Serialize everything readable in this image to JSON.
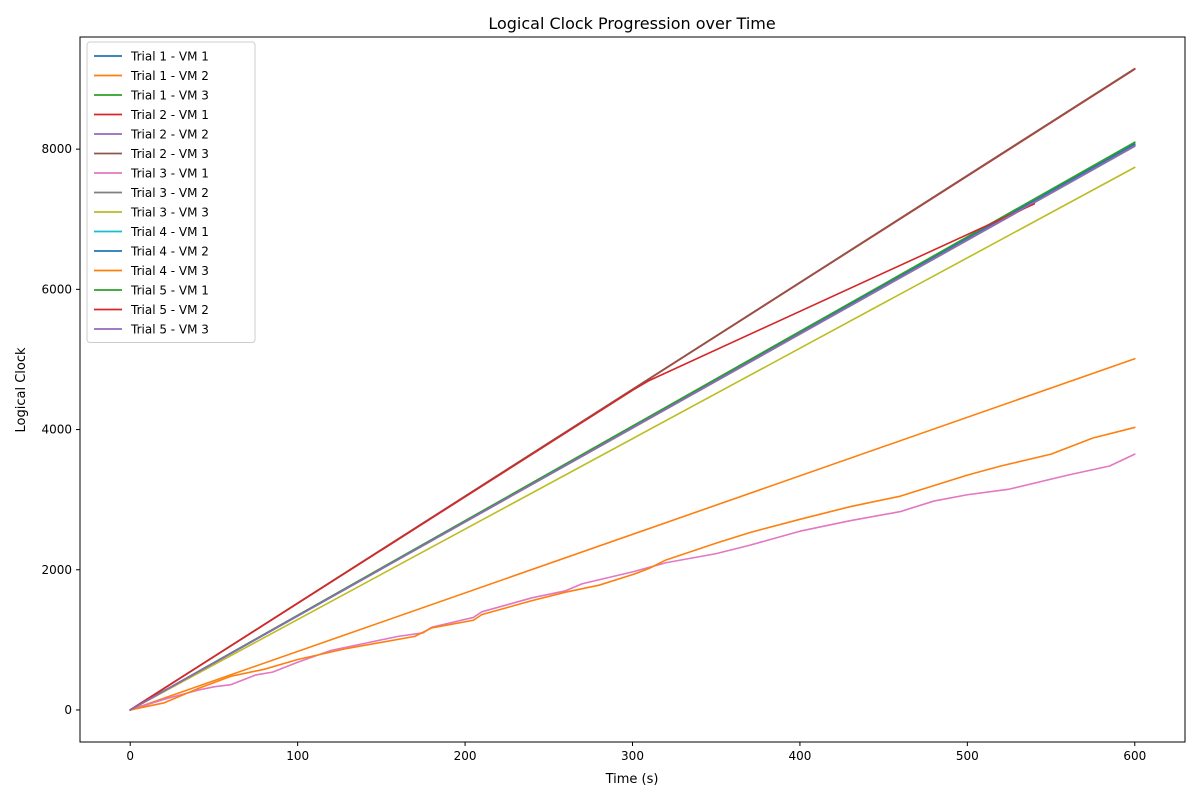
{
  "chart_data": {
    "type": "line",
    "title": "Logical Clock Progression over Time",
    "xlabel": "Time (s)",
    "ylabel": "Logical Clock",
    "xlim": [
      -30,
      630
    ],
    "ylim": [
      -457,
      9600
    ],
    "xticks": [
      0,
      100,
      200,
      300,
      400,
      500,
      600
    ],
    "yticks": [
      0,
      2000,
      4000,
      6000,
      8000
    ],
    "grid": false,
    "legend_position": "top-left",
    "series": [
      {
        "name": "Trial 1 - VM 1",
        "color": "#1f77b4",
        "x": [
          0,
          600
        ],
        "y": [
          0,
          8050
        ]
      },
      {
        "name": "Trial 1 - VM 2",
        "color": "#ff7f0e",
        "x": [
          0,
          600
        ],
        "y": [
          0,
          5010
        ]
      },
      {
        "name": "Trial 1 - VM 3",
        "color": "#2ca02c",
        "x": [
          0,
          600
        ],
        "y": [
          0,
          8090
        ]
      },
      {
        "name": "Trial 2 - VM 1",
        "color": "#d62728",
        "x": [
          0,
          600
        ],
        "y": [
          0,
          9140
        ]
      },
      {
        "name": "Trial 2 - VM 2",
        "color": "#9467bd",
        "x": [
          0,
          600
        ],
        "y": [
          0,
          8060
        ]
      },
      {
        "name": "Trial 2 - VM 3",
        "color": "#8c564b",
        "x": [
          0,
          600
        ],
        "y": [
          0,
          9150
        ]
      },
      {
        "name": "Trial 3 - VM 1",
        "color": "#e377c2",
        "x": [
          0,
          20,
          40,
          50,
          60,
          75,
          85,
          100,
          120,
          140,
          160,
          175,
          180,
          205,
          210,
          240,
          260,
          270,
          300,
          320,
          350,
          370,
          400,
          430,
          460,
          480,
          500,
          525,
          560,
          585,
          600
        ],
        "y": [
          0,
          150,
          280,
          330,
          360,
          500,
          540,
          680,
          850,
          950,
          1050,
          1100,
          1180,
          1320,
          1400,
          1600,
          1700,
          1800,
          1970,
          2100,
          2230,
          2350,
          2550,
          2700,
          2830,
          2980,
          3070,
          3150,
          3350,
          3480,
          3650
        ]
      },
      {
        "name": "Trial 3 - VM 2",
        "color": "#7f7f7f",
        "x": [
          0,
          600
        ],
        "y": [
          0,
          8040
        ]
      },
      {
        "name": "Trial 3 - VM 3",
        "color": "#bcbd22",
        "x": [
          0,
          600
        ],
        "y": [
          0,
          7740
        ]
      },
      {
        "name": "Trial 4 - VM 1",
        "color": "#17becf",
        "x": [
          0,
          600
        ],
        "y": [
          0,
          8060
        ]
      },
      {
        "name": "Trial 4 - VM 2",
        "color": "#1f77b4",
        "x": [
          0,
          600
        ],
        "y": [
          0,
          8070
        ]
      },
      {
        "name": "Trial 4 - VM 3",
        "color": "#ff7f0e",
        "x": [
          0,
          20,
          40,
          60,
          80,
          100,
          130,
          170,
          180,
          205,
          210,
          240,
          260,
          280,
          300,
          310,
          320,
          350,
          370,
          400,
          430,
          460,
          480,
          500,
          520,
          550,
          575,
          600
        ],
        "y": [
          0,
          100,
          300,
          480,
          580,
          720,
          880,
          1050,
          1170,
          1280,
          1360,
          1560,
          1680,
          1780,
          1930,
          2020,
          2140,
          2380,
          2530,
          2720,
          2900,
          3050,
          3200,
          3350,
          3480,
          3650,
          3880,
          4030
        ]
      },
      {
        "name": "Trial 5 - VM 1",
        "color": "#2ca02c",
        "x": [
          0,
          600
        ],
        "y": [
          0,
          8100
        ]
      },
      {
        "name": "Trial 5 - VM 2",
        "color": "#d62728",
        "x": [
          0,
          300,
          310,
          540
        ],
        "y": [
          0,
          4560,
          4700,
          7220
        ]
      },
      {
        "name": "Trial 5 - VM 3",
        "color": "#9467bd",
        "x": [
          0,
          600
        ],
        "y": [
          0,
          8050
        ]
      }
    ]
  }
}
